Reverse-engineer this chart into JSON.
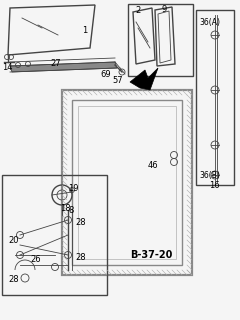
{
  "bg_color": "#f0f0f0",
  "line_color": "#444444",
  "dark_color": "#222222",
  "gray_color": "#888888",
  "light_gray": "#bbbbbb",
  "title": "B-37-20"
}
